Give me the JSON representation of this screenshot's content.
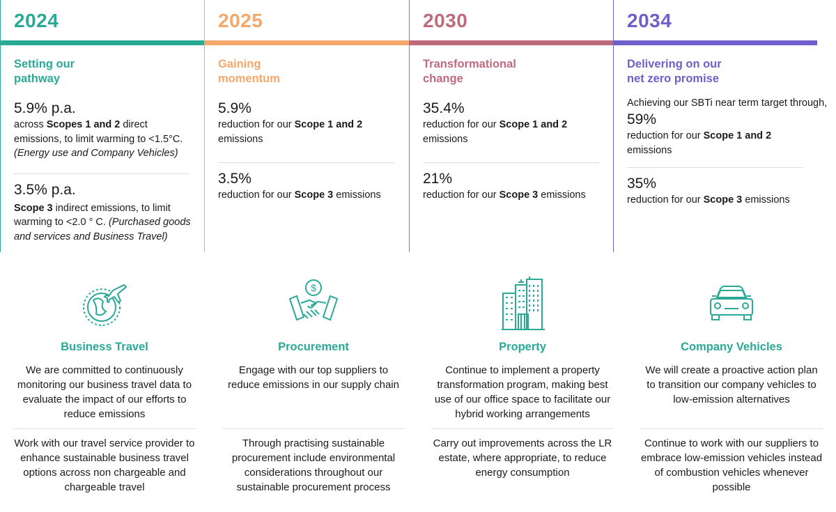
{
  "colors": {
    "teal": "#2aa997",
    "orange": "#f5a76c",
    "rose": "#bf6a7d",
    "purple": "#6f5fc9"
  },
  "timeline": [
    {
      "year": "2024",
      "phase_line1": "Setting our",
      "phase_line2": "pathway",
      "t1_value": "5.9% p.a.",
      "t1_pre": "across ",
      "t1_bold": "Scopes 1 and 2",
      "t1_post": " direct emissions, to limit warming to <1.5°C.",
      "t1_italic": "(Energy use and Company Vehicles)",
      "t2_value": "3.5% p.a.",
      "t2_bold": "Scope 3",
      "t2_post": " indirect emissions, to limit warming to <2.0 ° C. ",
      "t2_italic": "(Purchased goods and services and Business Travel)"
    },
    {
      "year": "2025",
      "phase_line1": "Gaining",
      "phase_line2": "momentum",
      "t1_value": "5.9%",
      "t1_pre": "reduction for our ",
      "t1_bold": "Scope 1 and 2",
      "t1_post": " emissions",
      "t2_value": "3.5%",
      "t2_pre": "reduction for our ",
      "t2_bold": "Scope 3",
      "t2_post": " emissions"
    },
    {
      "year": "2030",
      "phase_line1": "Transformational",
      "phase_line2": "change",
      "t1_value": "35.4%",
      "t1_pre": "reduction for our ",
      "t1_bold": "Scope 1 and 2",
      "t1_post": " emissions",
      "t2_value": "21%",
      "t2_pre": "reduction for our ",
      "t2_bold": "Scope 3",
      "t2_post": " emissions"
    },
    {
      "year": "2034",
      "phase_line1": "Delivering on our",
      "phase_line2": "net zero promise",
      "intro": "Achieving our SBTi near term target through,",
      "t1_value": "59%",
      "t1_pre": "reduction for our ",
      "t1_bold": "Scope 1 and 2",
      "t1_post": " emissions",
      "t2_value": "35%",
      "t2_pre": "reduction for our ",
      "t2_bold": "Scope 3",
      "t2_post": " emissions"
    }
  ],
  "actions": [
    {
      "icon": "globe-airplane-icon",
      "title": "Business Travel",
      "text1": "We are committed to continuously monitoring our business travel data to evaluate the impact of our efforts to reduce emissions",
      "text2": "Work with our travel service provider to enhance sustainable business travel options across non chargeable and chargeable travel"
    },
    {
      "icon": "handshake-dollar-icon",
      "title": "Procurement",
      "text1": "Engage with our top suppliers to reduce emissions in our supply chain",
      "text2": "Through practising sustainable procurement include environmental considerations throughout our sustainable procurement process"
    },
    {
      "icon": "office-buildings-icon",
      "title": "Property",
      "text1": "Continue to implement a property transformation program, making best use of our office space to facilitate our hybrid working arrangements",
      "text2": "Carry out improvements across the LR estate, where appropriate, to reduce energy consumption"
    },
    {
      "icon": "car-icon",
      "title": "Company Vehicles",
      "text1": "We will create a proactive action plan to transition our company vehicles to low-emission alternatives",
      "text2": "Continue to work with our suppliers to embrace low-emission vehicles instead of combustion vehicles whenever possible"
    }
  ]
}
